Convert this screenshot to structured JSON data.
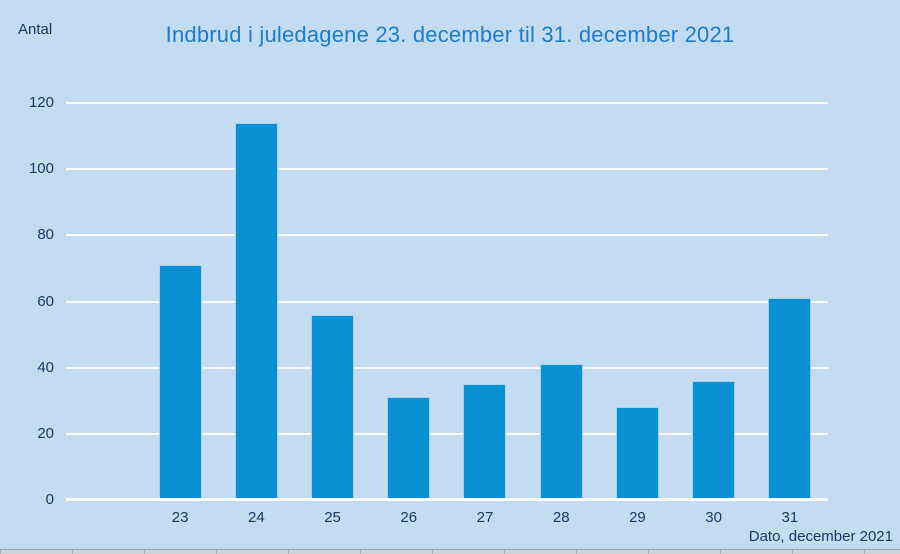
{
  "chart_data": {
    "type": "bar",
    "title": "Indbrud i juledagene 23. december til 31. december 2021",
    "ylabel": "Antal",
    "xlabel": "Dato, december 2021",
    "categories": [
      "23",
      "24",
      "25",
      "26",
      "27",
      "28",
      "29",
      "30",
      "31"
    ],
    "values": [
      71,
      114,
      56,
      31,
      35,
      41,
      28,
      36,
      61
    ],
    "ylim": [
      0,
      120
    ],
    "yticks": [
      0,
      20,
      40,
      60,
      80,
      100,
      120
    ],
    "grid": "horizontal-white-lines",
    "legend_position": "none"
  },
  "colors": {
    "background": "#c3dcf2",
    "bar": "#0a90d4",
    "bar_outline": "#a9d2ee",
    "title_text": "#1b7cce",
    "axis_text": "#17375e",
    "gridline": "#ffffff"
  }
}
